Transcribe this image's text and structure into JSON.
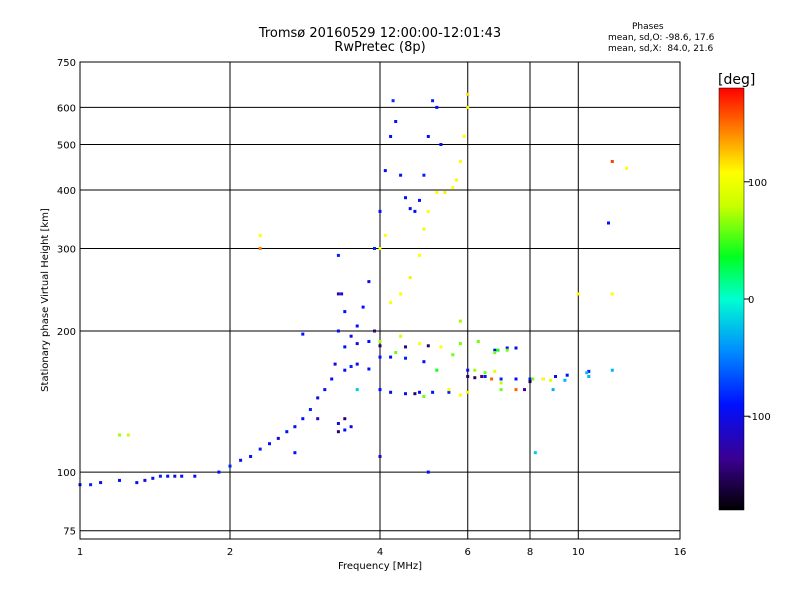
{
  "chart_data": {
    "type": "scatter",
    "title": "Tromsø 20160529 12:00:00-12:01:43",
    "subtitle": "RwPretec (8p)",
    "xlabel": "Frequency [MHz]",
    "ylabel": "Stationary phase Virtual Height [km]",
    "x_scale": "log",
    "y_scale": "log",
    "xlim": [
      1,
      16
    ],
    "ylim": [
      72,
      750
    ],
    "x_ticks": [
      "1",
      "2",
      "4",
      "6",
      "8",
      "10",
      "16"
    ],
    "y_ticks": [
      "75",
      "100",
      "200",
      "300",
      "400",
      "500",
      "600",
      "750"
    ],
    "grid": true,
    "phase_stats": {
      "heading": "Phases",
      "o_line": "mean, sd,O: -98.6, 17.6",
      "x_line": "mean, sd,X:  84.0, 21.6"
    },
    "colorbar": {
      "label": "[deg]",
      "ticks": [
        "100",
        "0",
        "-100"
      ],
      "range": [
        -180,
        180
      ]
    },
    "series": [
      {
        "points": [
          [
            1.0,
            94,
            -100
          ],
          [
            1.05,
            94,
            -95
          ],
          [
            1.1,
            95,
            -110
          ],
          [
            1.2,
            96,
            -100
          ],
          [
            1.3,
            95,
            -105
          ],
          [
            1.35,
            96,
            -110
          ],
          [
            1.4,
            97,
            -100
          ],
          [
            1.45,
            98,
            -95
          ],
          [
            1.5,
            98,
            -100
          ],
          [
            1.55,
            98,
            -110
          ],
          [
            1.6,
            98,
            -100
          ],
          [
            1.7,
            98,
            -100
          ],
          [
            1.9,
            100,
            -100
          ],
          [
            2.0,
            103,
            -95
          ],
          [
            2.1,
            106,
            -105
          ],
          [
            2.2,
            108,
            -100
          ],
          [
            2.3,
            112,
            -95
          ],
          [
            2.4,
            115,
            -100
          ],
          [
            2.5,
            118,
            -110
          ],
          [
            2.6,
            122,
            -100
          ],
          [
            2.7,
            125,
            -105
          ],
          [
            2.8,
            130,
            -100
          ],
          [
            2.9,
            136,
            -95
          ],
          [
            3.0,
            144,
            -110
          ],
          [
            3.1,
            150,
            -100
          ],
          [
            3.2,
            158,
            -100
          ],
          [
            3.25,
            170,
            -120
          ],
          [
            3.3,
            200,
            -100
          ],
          [
            3.35,
            240,
            -110
          ],
          [
            3.3,
            290,
            -95
          ],
          [
            3.4,
            220,
            -100
          ],
          [
            3.5,
            195,
            -115
          ],
          [
            3.6,
            205,
            -100
          ],
          [
            3.7,
            225,
            -100
          ],
          [
            3.8,
            255,
            -110
          ],
          [
            3.9,
            300,
            -95
          ],
          [
            4.0,
            360,
            -100
          ],
          [
            4.1,
            440,
            -105
          ],
          [
            4.2,
            520,
            -100
          ],
          [
            4.25,
            620,
            -90
          ],
          [
            4.3,
            560,
            -100
          ],
          [
            4.4,
            430,
            -105
          ],
          [
            4.5,
            385,
            -100
          ],
          [
            4.6,
            365,
            -110
          ],
          [
            4.7,
            360,
            -100
          ],
          [
            4.8,
            380,
            -100
          ],
          [
            4.9,
            430,
            -95
          ],
          [
            5.0,
            520,
            -100
          ],
          [
            5.1,
            620,
            -95
          ],
          [
            5.2,
            600,
            -100
          ],
          [
            5.3,
            500,
            -105
          ],
          [
            3.3,
            127,
            -115
          ],
          [
            3.4,
            123,
            -100
          ],
          [
            3.5,
            125,
            -110
          ],
          [
            3.0,
            130,
            -120
          ],
          [
            3.4,
            165,
            -100
          ],
          [
            3.5,
            168,
            -95
          ],
          [
            3.6,
            170,
            -110
          ],
          [
            3.8,
            166,
            -100
          ],
          [
            4.0,
            176,
            -100
          ],
          [
            4.2,
            176,
            -105
          ],
          [
            4.5,
            175,
            -95
          ],
          [
            4.9,
            172,
            -100
          ],
          [
            4.0,
            150,
            -100
          ],
          [
            4.2,
            148,
            -110
          ],
          [
            4.5,
            147,
            -100
          ],
          [
            4.8,
            148,
            -105
          ],
          [
            5.1,
            148,
            -100
          ],
          [
            5.5,
            148,
            -95
          ],
          [
            3.4,
            185,
            -100
          ],
          [
            3.6,
            188,
            -110
          ],
          [
            3.8,
            190,
            -100
          ],
          [
            6.0,
            165,
            -100
          ],
          [
            6.5,
            160,
            -105
          ],
          [
            7.0,
            158,
            -95
          ],
          [
            7.5,
            158,
            -100
          ],
          [
            8.0,
            158,
            -100
          ],
          [
            8.5,
            158,
            -110
          ],
          [
            9.0,
            160,
            -100
          ],
          [
            9.5,
            161,
            -100
          ],
          [
            10.5,
            164,
            -95
          ],
          [
            11.5,
            340,
            -100
          ],
          [
            6.8,
            182,
            -100
          ],
          [
            7.2,
            184,
            -100
          ],
          [
            7.5,
            184,
            -110
          ],
          [
            4.0,
            108,
            -120
          ],
          [
            5.0,
            100,
            -100
          ],
          [
            2.8,
            197,
            -100
          ],
          [
            2.7,
            110,
            -100
          ]
        ]
      },
      {
        "points": [
          [
            4.2,
            230,
            100
          ],
          [
            4.4,
            240,
            100
          ],
          [
            4.6,
            260,
            105
          ],
          [
            4.8,
            290,
            100
          ],
          [
            4.9,
            330,
            95
          ],
          [
            5.0,
            360,
            100
          ],
          [
            5.2,
            395,
            100
          ],
          [
            5.4,
            395,
            105
          ],
          [
            5.6,
            405,
            100
          ],
          [
            5.7,
            420,
            95
          ],
          [
            5.8,
            460,
            100
          ],
          [
            5.9,
            520,
            100
          ],
          [
            6.0,
            600,
            105
          ],
          [
            6.0,
            640,
            110
          ],
          [
            4.0,
            300,
            95
          ],
          [
            4.1,
            320,
            100
          ],
          [
            5.5,
            150,
            100
          ],
          [
            5.8,
            146,
            100
          ],
          [
            6.0,
            148,
            105
          ],
          [
            4.4,
            195,
            85
          ],
          [
            4.8,
            188,
            100
          ],
          [
            6.8,
            180,
            60
          ],
          [
            7.2,
            182,
            60
          ],
          [
            5.8,
            188,
            60
          ],
          [
            6.2,
            165,
            70
          ],
          [
            6.5,
            163,
            60
          ],
          [
            8.5,
            158,
            100
          ],
          [
            8.8,
            157,
            90
          ],
          [
            4.0,
            190,
            70
          ],
          [
            5.3,
            185,
            100
          ],
          [
            6.8,
            164,
            90
          ],
          [
            7.0,
            150,
            60
          ],
          [
            4.9,
            145,
            60
          ],
          [
            10.0,
            240,
            100
          ],
          [
            12.5,
            445,
            100
          ],
          [
            11.7,
            240,
            100
          ],
          [
            2.3,
            320,
            100
          ]
        ]
      },
      {
        "points": [
          [
            1.2,
            120,
            70
          ],
          [
            1.25,
            120,
            80
          ],
          [
            5.8,
            210,
            70
          ],
          [
            6.3,
            190,
            60
          ],
          [
            4.3,
            180,
            60
          ],
          [
            6.9,
            182,
            40
          ],
          [
            8.1,
            158,
            60
          ],
          [
            7.0,
            155,
            80
          ],
          [
            5.2,
            165,
            40
          ],
          [
            5.6,
            178,
            60
          ]
        ]
      },
      {
        "points": [
          [
            3.6,
            150,
            -30
          ],
          [
            8.9,
            150,
            -40
          ],
          [
            9.4,
            157,
            -40
          ],
          [
            10.5,
            160,
            -40
          ],
          [
            11.7,
            165,
            -40
          ],
          [
            10.4,
            163,
            -40
          ],
          [
            8.2,
            110,
            -30
          ]
        ]
      },
      {
        "points": [
          [
            11.7,
            460,
            160
          ],
          [
            2.3,
            300,
            140
          ],
          [
            7.5,
            150,
            150
          ],
          [
            6.7,
            158,
            150
          ]
        ]
      },
      {
        "points": [
          [
            3.3,
            122,
            -150
          ],
          [
            3.4,
            130,
            -150
          ],
          [
            3.3,
            240,
            -140
          ],
          [
            3.9,
            200,
            -145
          ],
          [
            4.7,
            147,
            -150
          ],
          [
            6.0,
            160,
            -150
          ],
          [
            8.0,
            156,
            -160
          ],
          [
            7.8,
            150,
            -140
          ],
          [
            4.0,
            186,
            -150
          ],
          [
            4.5,
            185,
            -145
          ],
          [
            5.0,
            186,
            -150
          ],
          [
            6.2,
            159,
            -150
          ],
          [
            6.4,
            160,
            -140
          ]
        ]
      }
    ]
  }
}
